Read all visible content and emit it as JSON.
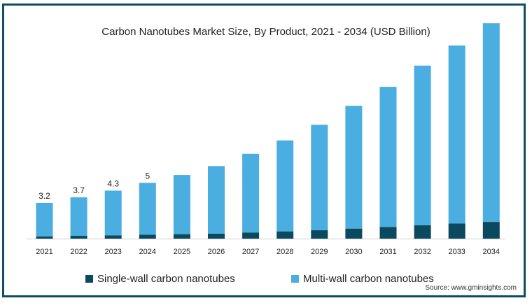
{
  "title": "Carbon Nanotubes Market Size, By Product, 2021 - 2034 (USD Billion)",
  "source": "Source: www.gminsights.com",
  "colors": {
    "single_wall": "#0b4a5e",
    "multi_wall": "#4aaee0",
    "frame": "#0e4d63"
  },
  "chart_data": {
    "type": "bar",
    "stacked": true,
    "title": "Carbon Nanotubes Market Size, By Product, 2021 - 2034 (USD Billion)",
    "categories": [
      "2021",
      "2022",
      "2023",
      "2024",
      "2025",
      "2026",
      "2027",
      "2028",
      "2029",
      "2030",
      "2031",
      "2032",
      "2033",
      "2034"
    ],
    "series": [
      {
        "name": "Single-wall carbon nanotubes",
        "values": [
          0.2,
          0.25,
          0.3,
          0.35,
          0.4,
          0.45,
          0.55,
          0.65,
          0.75,
          0.9,
          1.05,
          1.2,
          1.35,
          1.5
        ]
      },
      {
        "name": "Multi-wall carbon nanotubes",
        "values": [
          3.0,
          3.45,
          4.0,
          4.65,
          5.3,
          6.05,
          7.05,
          8.15,
          9.45,
          11.0,
          12.55,
          14.3,
          15.95,
          17.8
        ]
      }
    ],
    "data_labels": [
      "3.2",
      "3.7",
      "4.3",
      "5",
      "",
      "",
      "",
      "",
      "",
      "",
      "",
      "",
      "",
      ""
    ],
    "ylim": [
      0,
      20
    ],
    "legend": "bottom",
    "grid": false
  }
}
